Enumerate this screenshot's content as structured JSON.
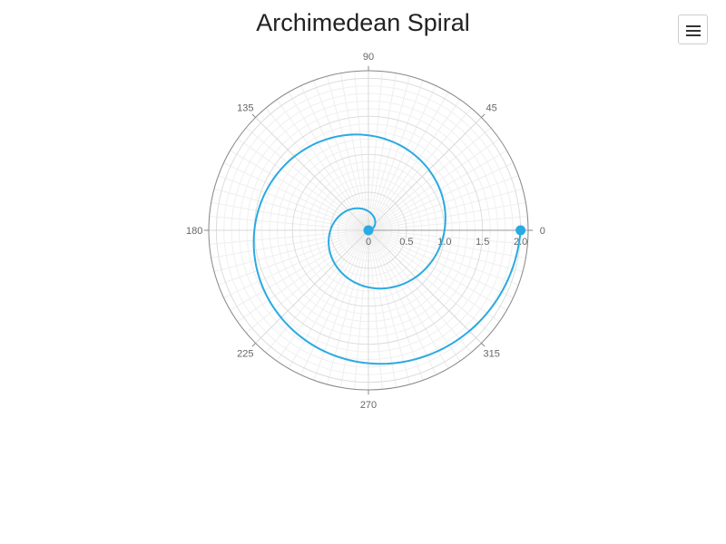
{
  "chart_data": {
    "type": "line",
    "polar": true,
    "title": "Archimedean Spiral",
    "angle_ticks": [
      "0",
      "45",
      "90",
      "135",
      "180",
      "225",
      "270",
      "315"
    ],
    "radial_ticks": [
      "0",
      "0.5",
      "1.0",
      "1.5",
      "2.0"
    ],
    "radial_range": [
      0,
      2.1
    ],
    "angle_range": [
      0,
      360
    ],
    "angle_direction": "counterclockwise",
    "grid": true,
    "series": [
      {
        "color": "#29aae2",
        "function": "r = theta / 360 (degrees)",
        "theta_range": [
          0,
          720
        ],
        "markers": [
          {
            "theta": 0,
            "r": 0
          },
          {
            "theta": 720,
            "r": 2
          }
        ]
      }
    ]
  },
  "toolbar": {
    "menu_icon": "hamburger-menu-icon"
  }
}
